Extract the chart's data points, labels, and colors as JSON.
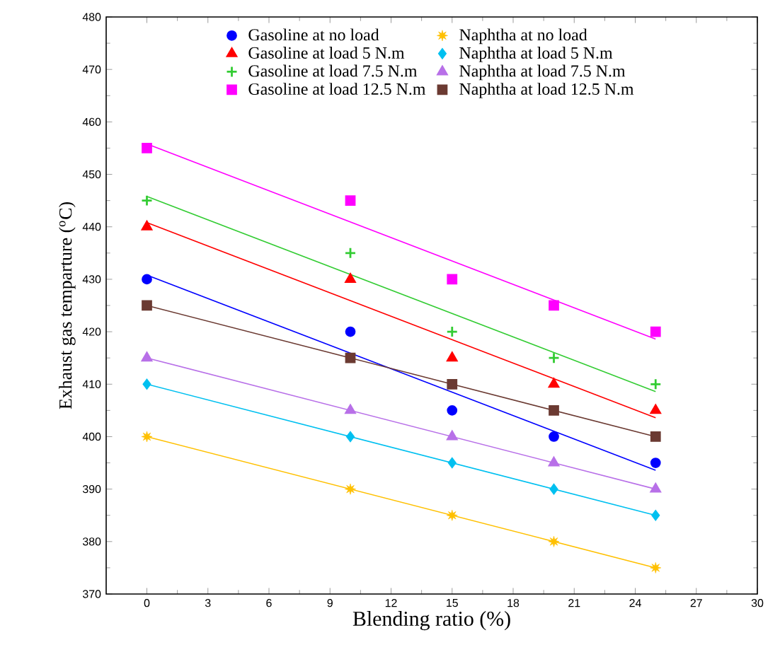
{
  "chart_data": {
    "type": "scatter",
    "xlabel": "Blending ratio (%)",
    "ylabel": "Exhaust gas temparture ($^{o}$C)",
    "xlim": [
      -2,
      30
    ],
    "xticks": [
      0,
      3,
      6,
      9,
      12,
      15,
      18,
      21,
      24,
      27,
      30
    ],
    "ylim": [
      370,
      480
    ],
    "yticks": [
      370,
      380,
      390,
      400,
      410,
      420,
      430,
      440,
      450,
      460,
      470,
      480
    ],
    "grid": false,
    "legend": "top",
    "series": [
      {
        "name": "Gasoline at no load",
        "type": "scatter",
        "marker": "circle",
        "color": "#0000ff",
        "x": [
          0,
          10,
          15,
          20,
          25
        ],
        "values": [
          430,
          420,
          405,
          400,
          395
        ]
      },
      {
        "name": "Gasoline at load 5 N.m",
        "type": "scatter",
        "marker": "triangle",
        "color": "#ff0000",
        "x": [
          0,
          10,
          15,
          20,
          25
        ],
        "values": [
          440,
          430,
          415,
          410,
          405
        ]
      },
      {
        "name": "Gasoline at load 7.5 N.m",
        "type": "scatter",
        "marker": "cross",
        "color": "#33cc33",
        "x": [
          0,
          10,
          15,
          20,
          25
        ],
        "values": [
          445,
          435,
          420,
          415,
          410
        ]
      },
      {
        "name": "Gasoline at load 12.5 N.m",
        "type": "scatter",
        "marker": "square",
        "color": "#ff00ff",
        "x": [
          0,
          10,
          15,
          20,
          25
        ],
        "values": [
          455,
          445,
          430,
          425,
          420
        ]
      },
      {
        "name": "Naphtha at no load",
        "type": "scatter",
        "marker": "star",
        "color": "#ffc000",
        "x": [
          0,
          10,
          15,
          20,
          25
        ],
        "values": [
          400,
          390,
          385,
          380,
          375
        ]
      },
      {
        "name": "Naphtha at load 5 N.m",
        "type": "scatter",
        "marker": "diamond",
        "color": "#00c0f0",
        "x": [
          0,
          10,
          15,
          20,
          25
        ],
        "values": [
          410,
          400,
          395,
          390,
          385
        ]
      },
      {
        "name": "Naphtha at load 7.5 N.m",
        "type": "scatter",
        "marker": "triangle",
        "color": "#b870e8",
        "x": [
          0,
          10,
          15,
          20,
          25
        ],
        "values": [
          415,
          405,
          400,
          395,
          390
        ]
      },
      {
        "name": "Naphtha at load 12.5 N.m",
        "type": "scatter",
        "marker": "square",
        "color": "#6b3a32",
        "x": [
          0,
          10,
          15,
          20,
          25
        ],
        "values": [
          425,
          415,
          410,
          405,
          400
        ]
      },
      {
        "type": "line",
        "color": "#0000ff",
        "x": [
          0,
          25
        ],
        "values": [
          430.8,
          393.6
        ]
      },
      {
        "type": "line",
        "color": "#ff0000",
        "x": [
          0,
          25
        ],
        "values": [
          440.8,
          403.6
        ]
      },
      {
        "type": "line",
        "color": "#33cc33",
        "x": [
          0,
          25
        ],
        "values": [
          445.8,
          408.6
        ]
      },
      {
        "type": "line",
        "color": "#ff00ff",
        "x": [
          0,
          25
        ],
        "values": [
          455.8,
          418.6
        ]
      },
      {
        "type": "line",
        "color": "#ffc000",
        "x": [
          0,
          25
        ],
        "values": [
          400,
          375
        ]
      },
      {
        "type": "line",
        "color": "#00c0f0",
        "x": [
          0,
          25
        ],
        "values": [
          410,
          385
        ]
      },
      {
        "type": "line",
        "color": "#b870e8",
        "x": [
          0,
          25
        ],
        "values": [
          415,
          390
        ]
      },
      {
        "type": "line",
        "color": "#6b3a32",
        "x": [
          0,
          25
        ],
        "values": [
          425,
          400
        ]
      }
    ]
  }
}
